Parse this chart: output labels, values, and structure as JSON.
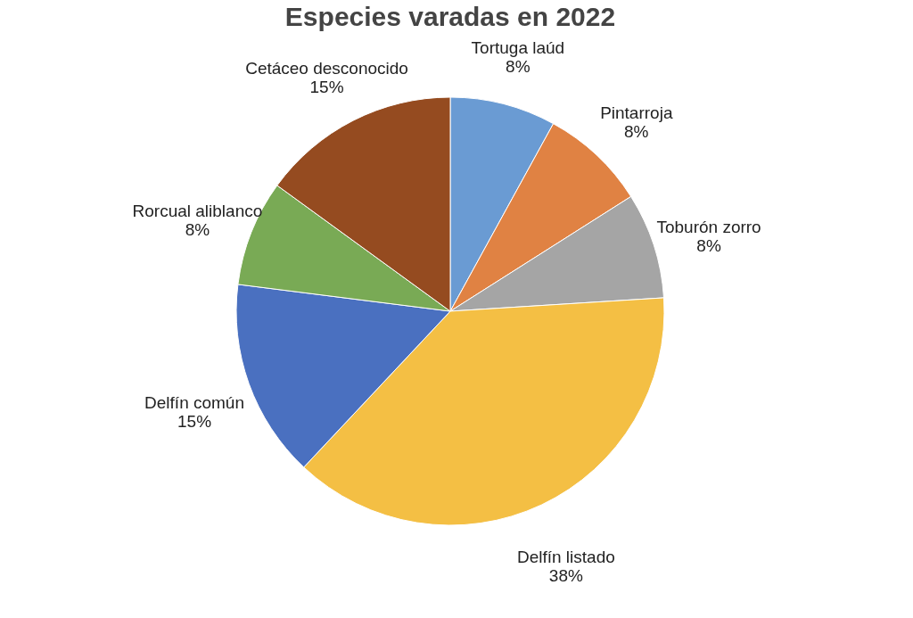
{
  "chart_data": {
    "type": "pie",
    "title": "Especies varadas en 2022",
    "categories": [
      "Tortuga laúd",
      "Pintarroja",
      "Toburón zorro",
      "Delfín listado",
      "Delfín común",
      "Rorcual aliblanco",
      "Cetáceo desconocido"
    ],
    "values": [
      8,
      8,
      8,
      38,
      15,
      8,
      15
    ],
    "value_labels": [
      "8%",
      "8%",
      "8%",
      "38%",
      "15%",
      "8%",
      "15%"
    ],
    "colors": [
      "#6a9bd3",
      "#e08243",
      "#a5a5a5",
      "#f4bf44",
      "#4a70c0",
      "#79aa55",
      "#954b20"
    ],
    "legend": false
  }
}
